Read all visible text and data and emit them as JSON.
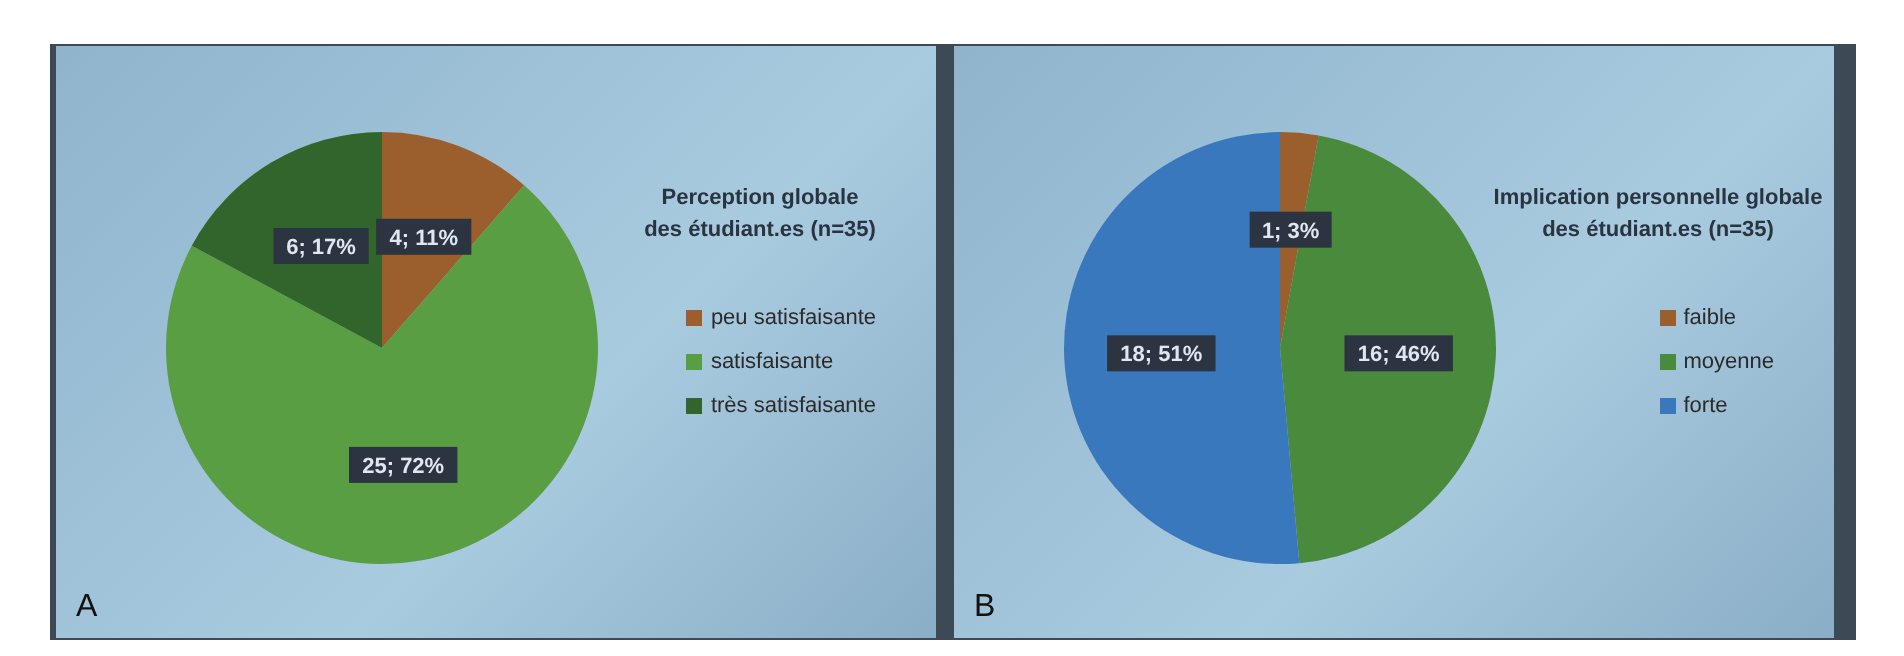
{
  "chart_data": [
    {
      "type": "pie",
      "title": "Perception globale\ndes étudiant.es (n=35)",
      "categories": [
        "peu satisfaisante",
        "satisfaisante",
        "très satisfaisante"
      ],
      "values": [
        4,
        25,
        6
      ],
      "colors": [
        "#9a5f2c",
        "#5a9e44",
        "#32652c"
      ],
      "value_labels": [
        "4; 11%",
        "25; 72%",
        "6; 17%"
      ],
      "legend": "right",
      "annotations": [
        "A"
      ]
    },
    {
      "type": "pie",
      "title": "Implication personnelle globale\ndes étudiant.es (n=35)",
      "categories": [
        "faible",
        "moyenne",
        "forte"
      ],
      "values": [
        1,
        16,
        18
      ],
      "colors": [
        "#9a5f2c",
        "#4a8a3c",
        "#3a78be"
      ],
      "value_labels": [
        "1; 3%",
        "16; 46%",
        "18; 51%"
      ],
      "legend": "right",
      "annotations": [
        "B"
      ]
    }
  ]
}
